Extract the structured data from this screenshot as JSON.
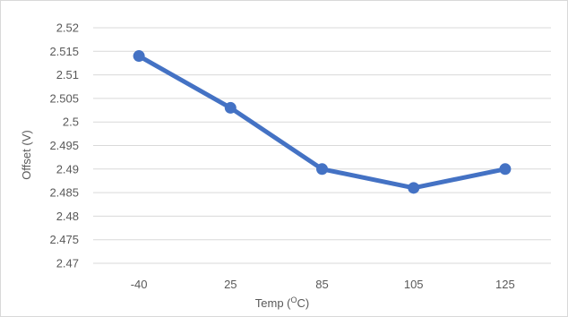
{
  "chart_data": {
    "type": "line",
    "categories": [
      "-40",
      "25",
      "85",
      "105",
      "125"
    ],
    "series": [
      {
        "values": [
          2.514,
          2.503,
          2.49,
          2.486,
          2.49
        ],
        "color": "#4472C4"
      }
    ],
    "title": "",
    "xlabel": {
      "main": "Temp (",
      "sup": "O",
      "end": "C)"
    },
    "ylabel": "Offset (V)",
    "ylim": [
      2.47,
      2.52
    ],
    "yticks": [
      "2.52",
      "2.515",
      "2.51",
      "2.505",
      "2.5",
      "2.495",
      "2.49",
      "2.485",
      "2.48",
      "2.475",
      "2.47"
    ],
    "grid": true,
    "legend": "none",
    "gridline_color": "#d9d9d9"
  }
}
